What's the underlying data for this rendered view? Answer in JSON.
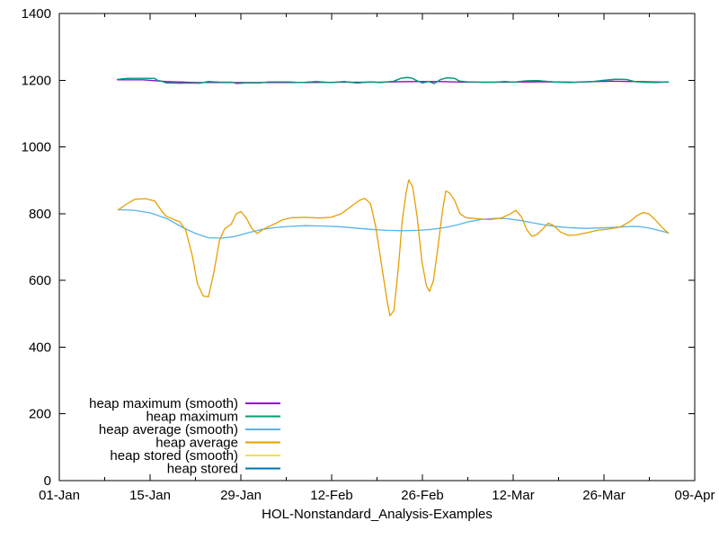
{
  "figure": {
    "background_color": "#ffffff",
    "text_color": "#000000",
    "border_color": "#000000"
  },
  "chart_data": {
    "type": "line",
    "title": "",
    "xlabel": "HOL-Nonstandard_Analysis-Examples",
    "ylabel": "",
    "grid": false,
    "x_axis": {
      "unit": "date, days since 01-Jan",
      "range_days": [
        0,
        98
      ],
      "major_ticks_days": [
        0,
        14,
        28,
        42,
        56,
        70,
        84,
        98
      ],
      "minor_ticks_days": [
        7,
        21,
        35,
        49,
        63,
        77,
        91
      ],
      "tick_labels": [
        "01-Jan",
        "15-Jan",
        "29-Jan",
        "12-Feb",
        "26-Feb",
        "12-Mar",
        "26-Mar",
        "09-Apr"
      ]
    },
    "y_axis": {
      "range": [
        0,
        1400
      ],
      "tick_values": [
        0,
        200,
        400,
        600,
        800,
        1000,
        1200,
        1400
      ],
      "tick_labels": [
        "0",
        "200",
        "400",
        "600",
        "800",
        "1000",
        "1200",
        "1400"
      ]
    },
    "legend": {
      "position": "inside-bottom-left",
      "entries": [
        {
          "label": "heap maximum (smooth)",
          "color": "#9400d3"
        },
        {
          "label": "heap maximum",
          "color": "#009e73"
        },
        {
          "label": "heap average (smooth)",
          "color": "#56b4e9"
        },
        {
          "label": "heap average",
          "color": "#e69f00"
        },
        {
          "label": "heap stored (smooth)",
          "color": "#f0e442"
        },
        {
          "label": "heap stored",
          "color": "#0072b2"
        }
      ]
    },
    "series_note": "points are [days_since_01_jan, value]; heap stored curves coincide with heap maximum curves and are hidden beneath them",
    "series": [
      {
        "name": "heap stored (smooth)",
        "color": "#f0e442",
        "points_same_as": "heap maximum (smooth)"
      },
      {
        "name": "heap stored",
        "color": "#0072b2",
        "points_same_as": "heap maximum"
      },
      {
        "name": "heap maximum (smooth)",
        "color": "#9400d3",
        "points": [
          [
            8.9,
            1201
          ],
          [
            13,
            1201
          ],
          [
            16.5,
            1196
          ],
          [
            21.3,
            1193
          ],
          [
            26.9,
            1193
          ],
          [
            32.4,
            1193
          ],
          [
            38,
            1193
          ],
          [
            43.5,
            1194
          ],
          [
            49.1,
            1194
          ],
          [
            53.9,
            1196
          ],
          [
            58.8,
            1196
          ],
          [
            62.9,
            1194
          ],
          [
            68.5,
            1194
          ],
          [
            74,
            1195
          ],
          [
            79.6,
            1194
          ],
          [
            85.1,
            1197
          ],
          [
            89.3,
            1196
          ],
          [
            94,
            1194
          ]
        ]
      },
      {
        "name": "heap maximum",
        "color": "#009e73",
        "points": [
          [
            8.9,
            1202
          ],
          [
            10.3,
            1205
          ],
          [
            11.6,
            1206
          ],
          [
            13.7,
            1206
          ],
          [
            14.7,
            1205
          ],
          [
            15.2,
            1199
          ],
          [
            15.8,
            1197
          ],
          [
            16.5,
            1192
          ],
          [
            18.6,
            1191
          ],
          [
            20.2,
            1192
          ],
          [
            21.6,
            1191
          ],
          [
            23,
            1196
          ],
          [
            24.8,
            1194
          ],
          [
            26.6,
            1194
          ],
          [
            27.4,
            1190
          ],
          [
            28.6,
            1192
          ],
          [
            30.8,
            1192
          ],
          [
            32.4,
            1195
          ],
          [
            35.2,
            1195
          ],
          [
            37.3,
            1193
          ],
          [
            39.6,
            1196
          ],
          [
            41.9,
            1193
          ],
          [
            43.9,
            1196
          ],
          [
            45.9,
            1192
          ],
          [
            48,
            1195
          ],
          [
            49.6,
            1193
          ],
          [
            51.6,
            1197
          ],
          [
            52.7,
            1206
          ],
          [
            53.5,
            1208
          ],
          [
            54.3,
            1207
          ],
          [
            55.2,
            1198
          ],
          [
            56,
            1192
          ],
          [
            57,
            1196
          ],
          [
            57.8,
            1190
          ],
          [
            58.8,
            1202
          ],
          [
            59.7,
            1207
          ],
          [
            60.9,
            1206
          ],
          [
            61.8,
            1197
          ],
          [
            62.9,
            1195
          ],
          [
            65,
            1194
          ],
          [
            67.1,
            1194
          ],
          [
            68.8,
            1196
          ],
          [
            70.1,
            1194
          ],
          [
            71.9,
            1198
          ],
          [
            73.7,
            1199
          ],
          [
            75.4,
            1196
          ],
          [
            77.1,
            1194
          ],
          [
            78.9,
            1193
          ],
          [
            80.7,
            1195
          ],
          [
            82.3,
            1196
          ],
          [
            84.1,
            1200
          ],
          [
            85.8,
            1203
          ],
          [
            87.5,
            1202
          ],
          [
            88.7,
            1196
          ],
          [
            90,
            1194
          ],
          [
            91.8,
            1193
          ],
          [
            93,
            1194
          ],
          [
            94,
            1195
          ]
        ]
      },
      {
        "name": "heap average (smooth)",
        "color": "#56b4e9",
        "points": [
          [
            9,
            812
          ],
          [
            11.6,
            810
          ],
          [
            14.1,
            802
          ],
          [
            16.6,
            785
          ],
          [
            19.1,
            758
          ],
          [
            21.1,
            740
          ],
          [
            23,
            728
          ],
          [
            25,
            727
          ],
          [
            26.9,
            731
          ],
          [
            29,
            742
          ],
          [
            31,
            752
          ],
          [
            33.1,
            758
          ],
          [
            35.5,
            762
          ],
          [
            38,
            764
          ],
          [
            40.5,
            763
          ],
          [
            43,
            761
          ],
          [
            45.5,
            757
          ],
          [
            48,
            753
          ],
          [
            50.5,
            750
          ],
          [
            52.9,
            749
          ],
          [
            55.4,
            750
          ],
          [
            57.4,
            753
          ],
          [
            59.3,
            758
          ],
          [
            61.3,
            766
          ],
          [
            63.2,
            776
          ],
          [
            65.1,
            783
          ],
          [
            67.1,
            786
          ],
          [
            69,
            785
          ],
          [
            71,
            780
          ],
          [
            72.9,
            773
          ],
          [
            74.9,
            766
          ],
          [
            76.8,
            761
          ],
          [
            78.7,
            758
          ],
          [
            81,
            756
          ],
          [
            83.2,
            757
          ],
          [
            85.4,
            759
          ],
          [
            87.3,
            761
          ],
          [
            89,
            762
          ],
          [
            90.4,
            759
          ],
          [
            91.8,
            753
          ],
          [
            92.9,
            748
          ],
          [
            94,
            742
          ]
        ]
      },
      {
        "name": "heap average",
        "color": "#e69f00",
        "points": [
          [
            9,
            810
          ],
          [
            10.3,
            828
          ],
          [
            11.6,
            843
          ],
          [
            13.3,
            845
          ],
          [
            14.7,
            838
          ],
          [
            15.8,
            808
          ],
          [
            16.5,
            792
          ],
          [
            17.6,
            783
          ],
          [
            18.6,
            775
          ],
          [
            19.5,
            750
          ],
          [
            20.5,
            675
          ],
          [
            21.3,
            590
          ],
          [
            22.2,
            553
          ],
          [
            23,
            551
          ],
          [
            23.8,
            620
          ],
          [
            24.7,
            720
          ],
          [
            25.5,
            755
          ],
          [
            26.5,
            768
          ],
          [
            27.3,
            800
          ],
          [
            28,
            806
          ],
          [
            28.8,
            788
          ],
          [
            29.7,
            755
          ],
          [
            30.5,
            741
          ],
          [
            31.7,
            756
          ],
          [
            33.1,
            768
          ],
          [
            34.5,
            782
          ],
          [
            35.9,
            788
          ],
          [
            38,
            789
          ],
          [
            40.1,
            787
          ],
          [
            41.9,
            789
          ],
          [
            43.5,
            800
          ],
          [
            44.9,
            820
          ],
          [
            46.3,
            840
          ],
          [
            47.1,
            846
          ],
          [
            48,
            830
          ],
          [
            48.8,
            760
          ],
          [
            49.6,
            660
          ],
          [
            50.5,
            545
          ],
          [
            51,
            494
          ],
          [
            51.6,
            510
          ],
          [
            52.3,
            640
          ],
          [
            52.9,
            780
          ],
          [
            53.5,
            865
          ],
          [
            53.9,
            901
          ],
          [
            54.5,
            880
          ],
          [
            55.2,
            790
          ],
          [
            55.9,
            660
          ],
          [
            56.6,
            585
          ],
          [
            57.1,
            567
          ],
          [
            57.7,
            600
          ],
          [
            58.4,
            700
          ],
          [
            59.1,
            810
          ],
          [
            59.6,
            868
          ],
          [
            60.2,
            862
          ],
          [
            61,
            838
          ],
          [
            61.8,
            800
          ],
          [
            62.7,
            788
          ],
          [
            64.3,
            785
          ],
          [
            66.4,
            782
          ],
          [
            68.2,
            787
          ],
          [
            69.6,
            800
          ],
          [
            70.4,
            810
          ],
          [
            71.3,
            790
          ],
          [
            72.1,
            752
          ],
          [
            72.9,
            732
          ],
          [
            73.7,
            738
          ],
          [
            74.6,
            755
          ],
          [
            75.4,
            772
          ],
          [
            76.2,
            765
          ],
          [
            77.3,
            745
          ],
          [
            78.5,
            735
          ],
          [
            79.6,
            736
          ],
          [
            81.2,
            742
          ],
          [
            83,
            750
          ],
          [
            84.8,
            754
          ],
          [
            86.5,
            760
          ],
          [
            87.9,
            775
          ],
          [
            89,
            793
          ],
          [
            90,
            803
          ],
          [
            90.9,
            800
          ],
          [
            91.9,
            782
          ],
          [
            92.9,
            760
          ],
          [
            94,
            740
          ]
        ]
      }
    ]
  }
}
